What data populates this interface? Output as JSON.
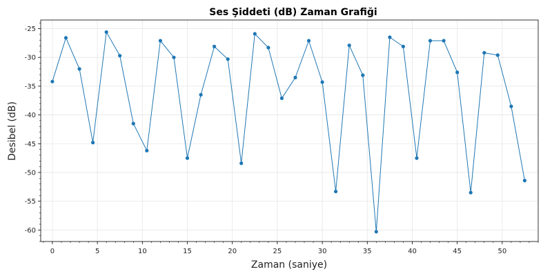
{
  "chart_data": {
    "type": "line",
    "title": "Ses Şiddeti (dB) Zaman Grafiği",
    "xlabel": "Zaman (saniye)",
    "ylabel": "Desibel (dB)",
    "xlim": [
      -1.3,
      54
    ],
    "ylim": [
      -62,
      -23.5
    ],
    "xticks": [
      0,
      5,
      10,
      15,
      20,
      25,
      30,
      35,
      40,
      45,
      50
    ],
    "yticks": [
      -60,
      -55,
      -50,
      -45,
      -40,
      -35,
      -30,
      -25
    ],
    "grid": true,
    "color": "#1f77b4",
    "series": [
      {
        "x": [
          0,
          1.5,
          3,
          4.5,
          6,
          7.5,
          9,
          10.5,
          12,
          13.5,
          15,
          16.5,
          18,
          19.5,
          21,
          22.5,
          24,
          25.5,
          27,
          28.5,
          30,
          31.5,
          33,
          34.5,
          36,
          37.5,
          39,
          40.5,
          42,
          43.5,
          45,
          46.5,
          48,
          49.5,
          51,
          52.5
        ],
        "y": [
          -34.2,
          -26.6,
          -32.0,
          -44.8,
          -25.6,
          -29.7,
          -41.5,
          -46.2,
          -27.1,
          -30.0,
          -47.5,
          -36.5,
          -28.1,
          -30.3,
          -48.4,
          -25.9,
          -28.3,
          -37.1,
          -33.5,
          -27.1,
          -34.3,
          -53.3,
          -27.9,
          -33.1,
          -60.3,
          -26.5,
          -28.1,
          -47.5,
          -27.1,
          -27.1,
          -32.6,
          -53.5,
          -29.2,
          -29.6,
          -38.5,
          -51.4
        ]
      }
    ]
  }
}
